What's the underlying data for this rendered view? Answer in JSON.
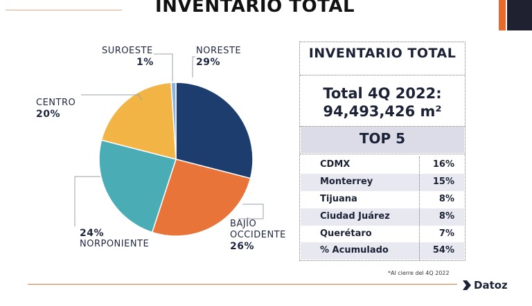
{
  "title": "INVENTARIO TOTAL",
  "chart_data": {
    "type": "pie",
    "categories": [
      "NORESTE",
      "BAJÍO OCCIDENTE",
      "NORPONIENTE",
      "CENTRO",
      "SUROESTE"
    ],
    "values": [
      29,
      26,
      24,
      20,
      1
    ],
    "value_labels": [
      "29%",
      "26%",
      "24%",
      "20%",
      "1%"
    ],
    "colors": [
      "#1d3d6e",
      "#e9743a",
      "#4aadb6",
      "#f2b445",
      "#8fb4dc"
    ]
  },
  "panel": {
    "title": "INVENTARIO TOTAL",
    "total_line1": "Total 4Q 2022:",
    "total_line2": "94,493,426 m²",
    "top5_title": "TOP 5",
    "rows": [
      {
        "city": "CDMX",
        "pct": "16%"
      },
      {
        "city": "Monterrey",
        "pct": "15%"
      },
      {
        "city": "Tijuana",
        "pct": "8%"
      },
      {
        "city": "Ciudad Juárez",
        "pct": "8%"
      },
      {
        "city": "Querétaro",
        "pct": "7%"
      },
      {
        "city": "% Acumulado",
        "pct": "54%"
      }
    ]
  },
  "footnote": "*Al cierre del 4Q 2022",
  "logo_text": "Datoz"
}
